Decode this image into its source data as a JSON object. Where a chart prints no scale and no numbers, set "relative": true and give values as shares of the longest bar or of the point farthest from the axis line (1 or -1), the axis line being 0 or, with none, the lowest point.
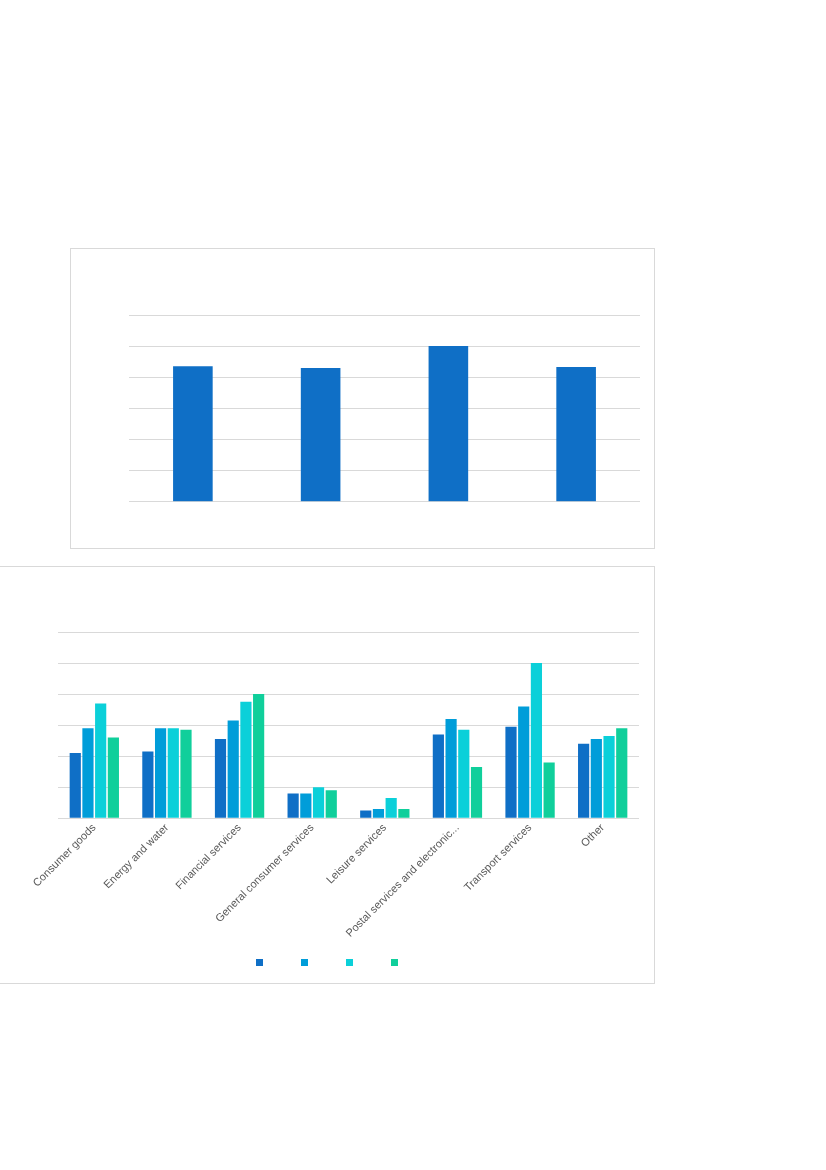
{
  "chart_data": [
    {
      "type": "bar",
      "relative": true,
      "grid": "y",
      "categories": [
        null,
        null,
        null,
        null
      ],
      "series": [
        {
          "color": "#0f6fc6",
          "values": [
            0.87,
            0.86,
            1,
            0.865
          ]
        }
      ]
    },
    {
      "type": "bar",
      "relative": true,
      "grid": "y",
      "categories": [
        "Consumer goods",
        "Energy and water",
        "Financial services",
        "General consumer services",
        "Leisure services",
        "Postal services and electronic...",
        "Transport services",
        "Other"
      ],
      "series": [
        {
          "color": "#0f6fc6",
          "values": [
            0.42,
            0.43,
            0.51,
            0.16,
            0.05,
            0.54,
            0.59,
            0.48
          ]
        },
        {
          "color": "#009dd9",
          "values": [
            0.58,
            0.58,
            0.63,
            0.16,
            0.06,
            0.64,
            0.72,
            0.51
          ]
        },
        {
          "color": "#0bd0d9",
          "values": [
            0.74,
            0.58,
            0.75,
            0.2,
            0.13,
            0.57,
            1,
            0.53
          ]
        },
        {
          "color": "#10cf9b",
          "values": [
            0.52,
            0.57,
            0.8,
            0.18,
            0.06,
            0.33,
            0.36,
            0.58
          ]
        }
      ]
    }
  ]
}
